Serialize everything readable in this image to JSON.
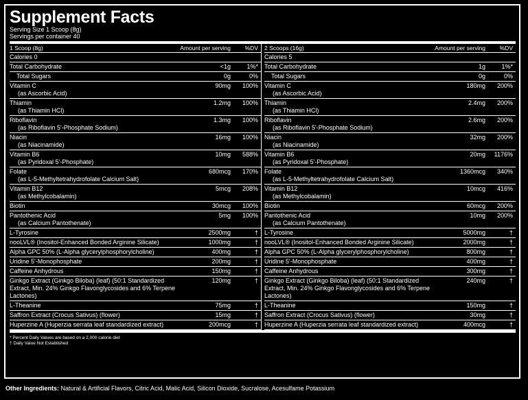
{
  "title": "Supplement Facts",
  "serving_size": "Serving Size 1 Scoop (8g)",
  "servings_per_container": "Servings per container 40",
  "columns": [
    {
      "header": {
        "label": "1 Scoop (8g)",
        "amount": "Amount per serving",
        "dv": "%DV"
      },
      "rows": [
        {
          "name": "Calories 0",
          "sub": "",
          "amount": "",
          "dv": ""
        },
        {
          "name": "Total Carbohydrate",
          "sub": "",
          "amount": "<1g",
          "dv": "1%*"
        },
        {
          "name": "Total Sugars",
          "sub": "",
          "amount": "0g",
          "dv": "0%",
          "indent": true
        },
        {
          "name": "Vitamin C",
          "sub": "(as Ascorbic Acid)",
          "amount": "90mg",
          "dv": "100%"
        },
        {
          "name": "Thiamin",
          "sub": "(as Thiamin HCl)",
          "amount": "1.2mg",
          "dv": "100%"
        },
        {
          "name": "Riboflavin",
          "sub": "(as Riboflavin 5'-Phosphate Sodium)",
          "amount": "1.3mg",
          "dv": "100%"
        },
        {
          "name": "Niacin",
          "sub": "(as Niacinamide)",
          "amount": "16mg",
          "dv": "100%"
        },
        {
          "name": "Vitamin B6",
          "sub": "(as Pyridoxal 5'-Phosphate)",
          "amount": "10mg",
          "dv": "588%"
        },
        {
          "name": "Folate",
          "sub": "(as L-5-Methyltetrahydrofolate Calcium Salt)",
          "amount": "680mcg",
          "dv": "170%"
        },
        {
          "name": "Vitamin B12",
          "sub": "(as Methylcobalamin)",
          "amount": "5mcg",
          "dv": "208%"
        },
        {
          "name": "Biotin",
          "sub": "",
          "amount": "30mcg",
          "dv": "100%"
        },
        {
          "name": "Pantothenic Acid",
          "sub": "(as Calcium Pantothenate)",
          "amount": "5mg",
          "dv": "100%"
        },
        {
          "name": "L-Tyrosine",
          "sub": "",
          "amount": "2500mg",
          "dv": "†"
        },
        {
          "name": "nooLVL® (Inositol-Enhanced Bonded Arginine Silicate)",
          "sub": "",
          "amount": "1000mg",
          "dv": "†"
        },
        {
          "name": "Alpha GPC 50% (L-Alpha glycerylphosphorylcholine)",
          "sub": "",
          "amount": "400mg",
          "dv": "†"
        },
        {
          "name": "Uridine 5'-Monophosphate",
          "sub": "",
          "amount": "200mg",
          "dv": "†"
        },
        {
          "name": "Caffeine Anhydrous",
          "sub": "",
          "amount": "150mg",
          "dv": "†"
        },
        {
          "name": "Ginkgo Extract (Ginkgo Biloba) (leaf) (50:1 Standardized Extract, Min. 24% Ginkgo Flavonglycosides and 6% Terpene Lactones)",
          "sub": "",
          "amount": "120mg",
          "dv": "†",
          "tall": true
        },
        {
          "name": "L-Theanine",
          "sub": "",
          "amount": "75mg",
          "dv": "†"
        },
        {
          "name": "Saffron Extract (Crocus Sativus) (flower)",
          "sub": "",
          "amount": "15mg",
          "dv": "†"
        },
        {
          "name": "Huperzine A (Huperzia serrata leaf standardized extract)",
          "sub": "",
          "amount": "200mcg",
          "dv": "†"
        }
      ]
    },
    {
      "header": {
        "label": "2 Scoops (16g)",
        "amount": "Amount per serving",
        "dv": "%DV"
      },
      "rows": [
        {
          "name": "Calories 5",
          "sub": "",
          "amount": "",
          "dv": ""
        },
        {
          "name": "Total Carbohydrate",
          "sub": "",
          "amount": "1g",
          "dv": "1%*"
        },
        {
          "name": "Total Sugars",
          "sub": "",
          "amount": "0g",
          "dv": "0%",
          "indent": true
        },
        {
          "name": "Vitamin C",
          "sub": "(as Ascorbic Acid)",
          "amount": "180mg",
          "dv": "200%"
        },
        {
          "name": "Thiamin",
          "sub": "(as Thiamin HCl)",
          "amount": "2.4mg",
          "dv": "200%"
        },
        {
          "name": "Riboflavin",
          "sub": "(as Riboflavin 5'-Phosphate Sodium)",
          "amount": "2.6mg",
          "dv": "200%"
        },
        {
          "name": "Niacin",
          "sub": "(as Niacinamide)",
          "amount": "32mg",
          "dv": "200%"
        },
        {
          "name": "Vitamin B6",
          "sub": "(as Pyridoxal 5'-Phosphate)",
          "amount": "20mg",
          "dv": "1176%"
        },
        {
          "name": "Folate",
          "sub": "(as L-5-Methyltetrahydrofolate Calcium Salt)",
          "amount": "1360mcg",
          "dv": "340%"
        },
        {
          "name": "Vitamin B12",
          "sub": "(as Methylcobalamin)",
          "amount": "10mcg",
          "dv": "416%"
        },
        {
          "name": "Biotin",
          "sub": "",
          "amount": "60mcg",
          "dv": "200%"
        },
        {
          "name": "Pantothenic Acid",
          "sub": "(as Calcium Pantothenate)",
          "amount": "10mg",
          "dv": "200%"
        },
        {
          "name": "L-Tyrosine",
          "sub": "",
          "amount": "5000mg",
          "dv": "†"
        },
        {
          "name": "nooLVL® (Inositol-Enhanced Bonded Arginine Silicate)",
          "sub": "",
          "amount": "2000mg",
          "dv": "†"
        },
        {
          "name": "Alpha GPC 50% (L-Alpha glycerylphosphorylcholine)",
          "sub": "",
          "amount": "800mg",
          "dv": "†"
        },
        {
          "name": "Uridine 5'-Monophosphate",
          "sub": "",
          "amount": "400mg",
          "dv": "†"
        },
        {
          "name": "Caffeine Anhydrous",
          "sub": "",
          "amount": "300mg",
          "dv": "†"
        },
        {
          "name": "Ginkgo Extract (Ginkgo Biloba) (leaf) (50:1 Standardized Extract, Min. 24% Ginkgo Flavonglycosides and 6% Terpene Lactones)",
          "sub": "",
          "amount": "240mg",
          "dv": "†",
          "tall": true
        },
        {
          "name": "L-Theanine",
          "sub": "",
          "amount": "150mg",
          "dv": "†"
        },
        {
          "name": "Saffron Extract (Crocus Sativus) (flower)",
          "sub": "",
          "amount": "30mg",
          "dv": "†"
        },
        {
          "name": "Huperzine A (Huperzia serrata leaf standardized extract)",
          "sub": "",
          "amount": "400mcg",
          "dv": "†"
        }
      ]
    }
  ],
  "footnotes": [
    "* Percent Daily Values are based on a 2,000 calorie diet",
    "† Daily Value Not Established"
  ],
  "other_ingredients": {
    "label": "Other Ingredients:",
    "text": "Natural & Artificial Flavors, Citric Acid, Malic Acid, Silicon Dioxide, Sucralose, Acesulfame Potassium"
  }
}
